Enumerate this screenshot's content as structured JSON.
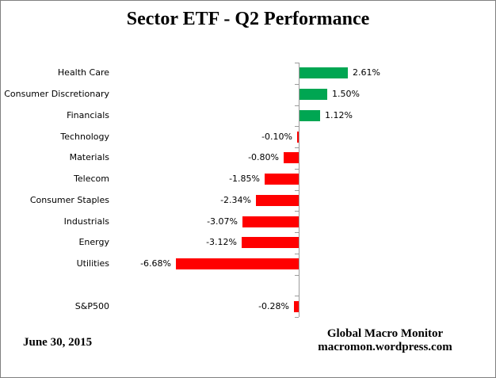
{
  "title": "Sector ETF - Q2 Performance",
  "footer": {
    "date": "June 30, 2015",
    "attribution_line1": "Global Macro Monitor",
    "attribution_line2": "macromon.wordpress.com"
  },
  "colors": {
    "positive": "#00A652",
    "negative": "#FF0000",
    "axis": "#9B9B9B",
    "text": "#000000",
    "frame_border": "#808080"
  },
  "chart_data": {
    "type": "bar",
    "orientation": "horizontal",
    "title": "Sector ETF - Q2 Performance",
    "unit": "%",
    "value_axis_visible": false,
    "grid": false,
    "legend": "none",
    "categories": [
      "Health Care",
      "Consumer Discretionary",
      "Financials",
      "Technology",
      "Materials",
      "Telecom",
      "Consumer Staples",
      "Industrials",
      "Energy",
      "Utilities",
      "",
      "S&P500"
    ],
    "values": [
      2.61,
      1.5,
      1.12,
      -0.1,
      -0.8,
      -1.85,
      -2.34,
      -3.07,
      -3.12,
      -6.68,
      null,
      -0.28
    ],
    "data_labels": [
      "2.61%",
      "1.50%",
      "1.12%",
      "-0.10%",
      "-0.80%",
      "-1.85%",
      "-2.34%",
      "-3.07%",
      "-3.12%",
      "-6.68%",
      "",
      "-0.28%"
    ],
    "positive_color": "#00A652",
    "negative_color": "#FF0000",
    "xlim_estimate": [
      -8,
      4
    ]
  }
}
